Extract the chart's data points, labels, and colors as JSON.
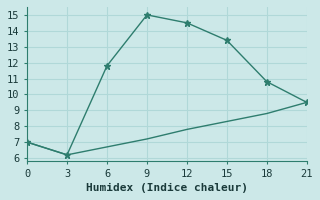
{
  "line1_x": [
    0,
    3,
    6,
    9,
    12,
    15,
    18,
    21
  ],
  "line1_y": [
    7.0,
    6.2,
    11.8,
    15.0,
    14.5,
    13.4,
    10.8,
    9.5
  ],
  "line2_x": [
    0,
    3,
    6,
    9,
    12,
    15,
    18,
    21
  ],
  "line2_y": [
    7.0,
    6.2,
    6.7,
    7.2,
    7.8,
    8.3,
    8.8,
    9.5
  ],
  "color": "#2e7d6e",
  "bg_color": "#cce8e8",
  "grid_color": "#b0d8d8",
  "xlabel": "Humidex (Indice chaleur)",
  "xlim": [
    0,
    21
  ],
  "ylim": [
    5.8,
    15.5
  ],
  "xticks": [
    0,
    3,
    6,
    9,
    12,
    15,
    18,
    21
  ],
  "yticks": [
    6,
    7,
    8,
    9,
    10,
    11,
    12,
    13,
    14,
    15
  ],
  "marker": "*",
  "markersize": 4.5,
  "linewidth": 1.0,
  "xlabel_fontsize": 8,
  "tick_fontsize": 7.5
}
